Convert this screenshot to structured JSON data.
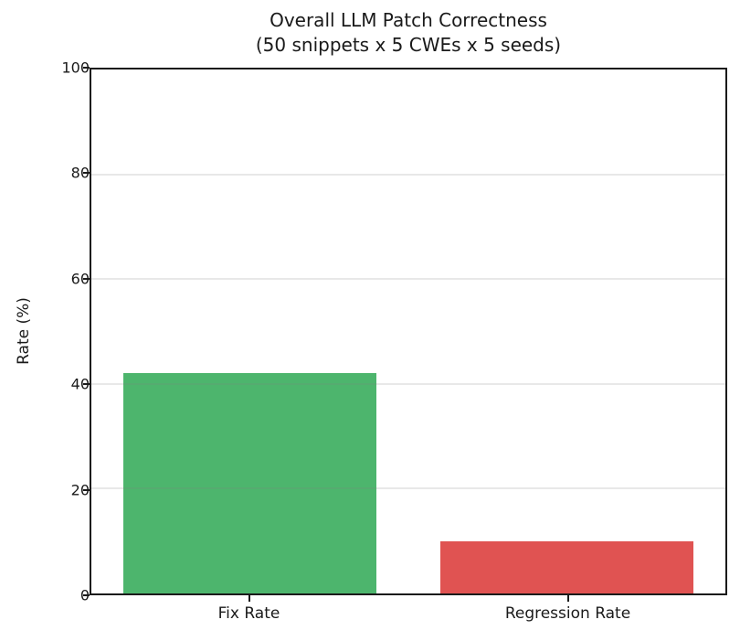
{
  "chart_data": {
    "type": "bar",
    "title": "Overall LLM Patch Correctness",
    "subtitle": "(50 snippets x 5 CWEs x 5 seeds)",
    "categories": [
      "Fix Rate",
      "Regression Rate"
    ],
    "values": [
      42,
      10
    ],
    "bar_colors": [
      "#4db56d",
      "#e05352"
    ],
    "xlabel": "",
    "ylabel": "Rate (%)",
    "ylim": [
      0,
      100
    ],
    "yticks": [
      0,
      20,
      40,
      60,
      80,
      100
    ],
    "grid": "horizontal",
    "grid_over_bars": true,
    "legend_position": "none"
  },
  "colors": {
    "spine": "#1a1a1a",
    "grid": "rgba(128,128,128,0.18)",
    "text": "#1a1a1a",
    "background": "#ffffff"
  }
}
